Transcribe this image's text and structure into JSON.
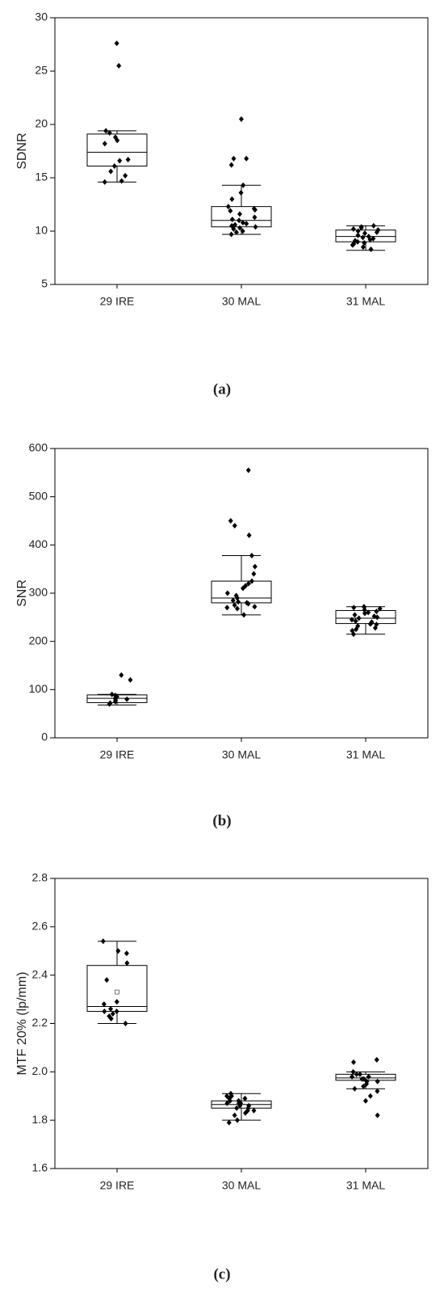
{
  "chart_data": [
    {
      "type": "box",
      "caption": "(a)",
      "ylabel": "SDNR",
      "categories": [
        "29 IRE",
        "30 MAL",
        "31 MAL"
      ],
      "ylim": [
        5,
        30
      ],
      "yticks": [
        5,
        10,
        15,
        20,
        25,
        30
      ],
      "boxes": [
        {
          "whislo": 14.6,
          "q1": 16.1,
          "med": 17.4,
          "q3": 19.1,
          "whishi": 19.4
        },
        {
          "whislo": 9.7,
          "q1": 10.4,
          "med": 11.0,
          "q3": 12.3,
          "whishi": 14.3
        },
        {
          "whislo": 8.2,
          "q1": 9.0,
          "med": 9.5,
          "q3": 10.1,
          "whishi": 10.5
        }
      ],
      "points": [
        [
          27.6,
          25.5,
          19.4,
          19.2,
          18.8,
          18.5,
          18.2,
          16.7,
          16.6,
          16.1,
          15.6,
          15.2,
          14.7,
          14.6
        ],
        [
          20.5,
          16.8,
          16.8,
          16.2,
          14.3,
          13.6,
          13.0,
          12.3,
          12.1,
          12.0,
          11.9,
          11.6,
          11.3,
          11.1,
          11.0,
          10.8,
          10.7,
          10.6,
          10.5,
          10.4,
          10.3,
          10.2,
          10.0,
          9.9,
          9.7
        ],
        [
          10.5,
          10.4,
          10.3,
          10.2,
          10.1,
          10.0,
          9.9,
          9.8,
          9.6,
          9.5,
          9.4,
          9.3,
          9.2,
          9.1,
          9.0,
          8.9,
          8.8,
          8.7,
          8.5,
          8.3
        ]
      ]
    },
    {
      "type": "box",
      "caption": "(b)",
      "ylabel": "SNR",
      "categories": [
        "29 IRE",
        "30 MAL",
        "31 MAL"
      ],
      "ylim": [
        0,
        600
      ],
      "yticks": [
        0,
        100,
        200,
        300,
        400,
        500,
        600
      ],
      "boxes": [
        {
          "whislo": 68,
          "q1": 73,
          "med": 82,
          "q3": 89,
          "whishi": 90
        },
        {
          "whislo": 255,
          "q1": 280,
          "med": 290,
          "q3": 325,
          "whishi": 378
        },
        {
          "whislo": 215,
          "q1": 237,
          "med": 248,
          "q3": 264,
          "whishi": 272
        }
      ],
      "points": [
        [
          130,
          120,
          90,
          88,
          85,
          82,
          80,
          78,
          75,
          72,
          70
        ],
        [
          555,
          450,
          440,
          420,
          378,
          355,
          340,
          325,
          320,
          315,
          310,
          300,
          295,
          290,
          285,
          282,
          280,
          278,
          275,
          272,
          270,
          268,
          255
        ],
        [
          272,
          270,
          268,
          265,
          262,
          260,
          258,
          255,
          252,
          250,
          248,
          245,
          242,
          240,
          238,
          236,
          235,
          232,
          228,
          225,
          222,
          215
        ]
      ]
    },
    {
      "type": "box",
      "caption": "(c)",
      "ylabel": "MTF 20% (lp/mm)",
      "categories": [
        "29 IRE",
        "30 MAL",
        "31 MAL"
      ],
      "ylim": [
        1.6,
        2.8
      ],
      "yticks": [
        1.6,
        1.8,
        {
          "value": 2,
          "label": "2.0"
        },
        2.2,
        2.4,
        2.6,
        2.8
      ],
      "boxes": [
        {
          "whislo": 2.2,
          "q1": 2.25,
          "med": 2.27,
          "q3": 2.44,
          "whishi": 2.54,
          "mean": 2.33
        },
        {
          "whislo": 1.8,
          "q1": 1.85,
          "med": 1.865,
          "q3": 1.88,
          "whishi": 1.91
        },
        {
          "whislo": 1.93,
          "q1": 1.965,
          "med": 1.975,
          "q3": 1.99,
          "whishi": 2.0
        }
      ],
      "points": [
        [
          2.54,
          2.5,
          2.49,
          2.45,
          2.38,
          2.29,
          2.28,
          2.26,
          2.25,
          2.25,
          2.24,
          2.23,
          2.22,
          2.2
        ],
        [
          1.91,
          1.9,
          1.9,
          1.89,
          1.89,
          1.88,
          1.88,
          1.87,
          1.87,
          1.87,
          1.86,
          1.86,
          1.85,
          1.85,
          1.84,
          1.84,
          1.83,
          1.82,
          1.8,
          1.79
        ],
        [
          2.05,
          2.04,
          2.0,
          1.99,
          1.99,
          1.98,
          1.98,
          1.97,
          1.97,
          1.96,
          1.96,
          1.95,
          1.94,
          1.93,
          1.92,
          1.9,
          1.88,
          1.82
        ]
      ]
    }
  ]
}
